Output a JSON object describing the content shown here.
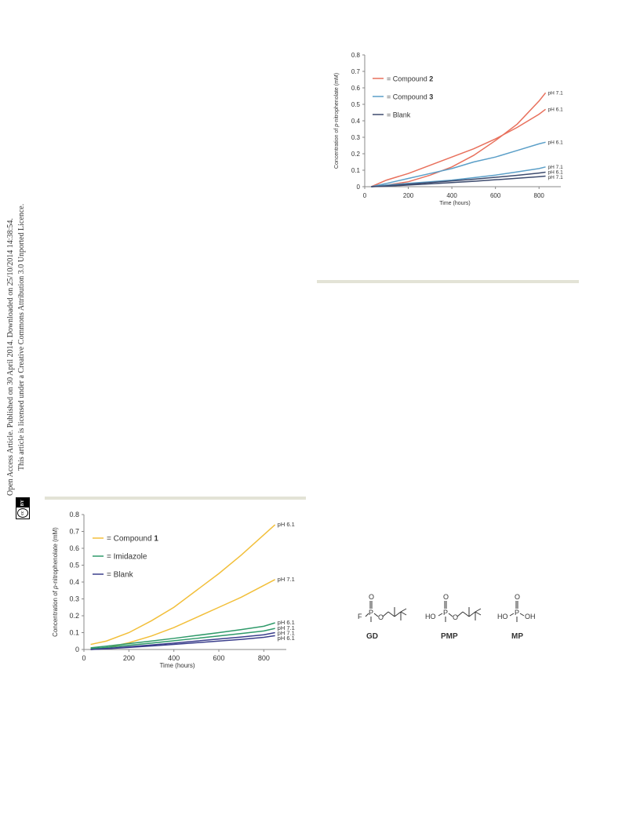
{
  "sidebar": {
    "line1": "Open Access Article. Published on 30 April 2014. Downloaded on 25/10/2014 14:38:54.",
    "line2": "This article is licensed under a Creative Commons Attribution 3.0 Unported Licence.",
    "badge_cc": "cc",
    "badge_by": "BY"
  },
  "molecules": {
    "gd": {
      "label": "GD",
      "atoms": [
        "O",
        "P",
        "F",
        "O"
      ]
    },
    "pmp": {
      "label": "PMP",
      "atoms": [
        "O",
        "P",
        "HO",
        "O"
      ]
    },
    "mp": {
      "label": "MP",
      "atoms": [
        "O",
        "P",
        "HO",
        "OH"
      ]
    }
  },
  "chart_data": [
    {
      "type": "line",
      "xlabel": "Time (hours)",
      "ylabel_prefix": "Concentration of ",
      "ylabel_italic": "p",
      "ylabel_suffix": "-nitrophenolate (mM)",
      "xlim": [
        0,
        900
      ],
      "ylim": [
        0,
        0.8
      ],
      "xticks": [
        0,
        200,
        400,
        600,
        800
      ],
      "yticks": [
        0,
        0.1,
        0.2,
        0.3,
        0.4,
        0.5,
        0.6,
        0.7,
        0.8
      ],
      "legend": [
        {
          "prefix": "= Compound ",
          "bold": "2",
          "color": "#e8705c"
        },
        {
          "prefix": "= Compound ",
          "bold": "3",
          "color": "#5b9fc8"
        },
        {
          "prefix": "= Blank",
          "bold": "",
          "color": "#3d4b6e"
        }
      ],
      "series": [
        {
          "label": "pH 7.1",
          "color": "#e8705c",
          "x": [
            30,
            100,
            200,
            300,
            400,
            500,
            600,
            700,
            800,
            830
          ],
          "y": [
            0.0,
            0.01,
            0.03,
            0.07,
            0.12,
            0.19,
            0.28,
            0.38,
            0.52,
            0.57
          ]
        },
        {
          "label": "pH 6.1",
          "color": "#e8705c",
          "x": [
            30,
            100,
            200,
            300,
            400,
            500,
            600,
            700,
            800,
            830
          ],
          "y": [
            0.0,
            0.04,
            0.08,
            0.13,
            0.18,
            0.23,
            0.29,
            0.36,
            0.44,
            0.47
          ]
        },
        {
          "label": "pH 6.1",
          "color": "#5b9fc8",
          "x": [
            30,
            100,
            200,
            300,
            400,
            500,
            600,
            700,
            800,
            830
          ],
          "y": [
            0.0,
            0.02,
            0.05,
            0.08,
            0.11,
            0.15,
            0.18,
            0.22,
            0.26,
            0.27
          ]
        },
        {
          "label": "pH 7.1",
          "color": "#5b9fc8",
          "x": [
            30,
            100,
            200,
            300,
            400,
            500,
            600,
            700,
            800,
            830
          ],
          "y": [
            0.0,
            0.01,
            0.02,
            0.03,
            0.04,
            0.055,
            0.07,
            0.09,
            0.11,
            0.12
          ]
        },
        {
          "label": "pH 6.1",
          "color": "#3d4b6e",
          "x": [
            30,
            100,
            200,
            300,
            400,
            500,
            600,
            700,
            800,
            830
          ],
          "y": [
            0.0,
            0.005,
            0.015,
            0.025,
            0.035,
            0.045,
            0.057,
            0.069,
            0.083,
            0.088
          ]
        },
        {
          "label": "pH 7.1",
          "color": "#3d4b6e",
          "x": [
            30,
            100,
            200,
            300,
            400,
            500,
            600,
            700,
            800,
            830
          ],
          "y": [
            0.0,
            0.003,
            0.01,
            0.017,
            0.025,
            0.033,
            0.042,
            0.051,
            0.061,
            0.064
          ]
        }
      ]
    },
    {
      "type": "line",
      "xlabel": "Time (hours)",
      "ylabel_prefix": "Concentration of ",
      "ylabel_italic": "p",
      "ylabel_suffix": "-nitrophenolate (mM)",
      "xlim": [
        0,
        900
      ],
      "ylim": [
        0,
        0.8
      ],
      "xticks": [
        0,
        200,
        400,
        600,
        800
      ],
      "yticks": [
        0,
        0.1,
        0.2,
        0.3,
        0.4,
        0.5,
        0.6,
        0.7,
        0.8
      ],
      "legend": [
        {
          "prefix": "= Compound ",
          "bold": "1",
          "color": "#f2bf3a"
        },
        {
          "prefix": "= Imidazole",
          "bold": "",
          "color": "#2f9a6a"
        },
        {
          "prefix": "= Blank",
          "bold": "",
          "color": "#3b3f8c"
        }
      ],
      "series": [
        {
          "label": "pH 6.1",
          "color": "#f2bf3a",
          "x": [
            30,
            100,
            200,
            300,
            400,
            500,
            600,
            700,
            800,
            850
          ],
          "y": [
            0.03,
            0.05,
            0.1,
            0.17,
            0.25,
            0.35,
            0.45,
            0.56,
            0.68,
            0.74
          ]
        },
        {
          "label": "pH 7.1",
          "color": "#f2bf3a",
          "x": [
            30,
            100,
            200,
            300,
            400,
            500,
            600,
            700,
            800,
            850
          ],
          "y": [
            0.0,
            0.01,
            0.04,
            0.08,
            0.13,
            0.19,
            0.25,
            0.31,
            0.38,
            0.415
          ]
        },
        {
          "label": "pH 6.1",
          "color": "#2f9a6a",
          "x": [
            30,
            100,
            200,
            300,
            400,
            500,
            600,
            700,
            800,
            850
          ],
          "y": [
            0.01,
            0.02,
            0.035,
            0.05,
            0.066,
            0.083,
            0.1,
            0.118,
            0.138,
            0.158
          ]
        },
        {
          "label": "pH 7.1",
          "color": "#2f9a6a",
          "x": [
            30,
            100,
            200,
            300,
            400,
            500,
            600,
            700,
            800,
            850
          ],
          "y": [
            0.005,
            0.012,
            0.025,
            0.038,
            0.052,
            0.066,
            0.08,
            0.095,
            0.11,
            0.125
          ]
        },
        {
          "label": "pH 7.1",
          "color": "#3b3f8c",
          "x": [
            30,
            100,
            200,
            300,
            400,
            500,
            600,
            700,
            800,
            850
          ],
          "y": [
            0.0,
            0.006,
            0.016,
            0.027,
            0.038,
            0.05,
            0.062,
            0.074,
            0.087,
            0.1
          ]
        },
        {
          "label": "pH 6.1",
          "color": "#3b3f8c",
          "x": [
            30,
            100,
            200,
            300,
            400,
            500,
            600,
            700,
            800,
            850
          ],
          "y": [
            0.0,
            0.004,
            0.012,
            0.021,
            0.03,
            0.04,
            0.05,
            0.06,
            0.072,
            0.082
          ]
        }
      ]
    }
  ]
}
